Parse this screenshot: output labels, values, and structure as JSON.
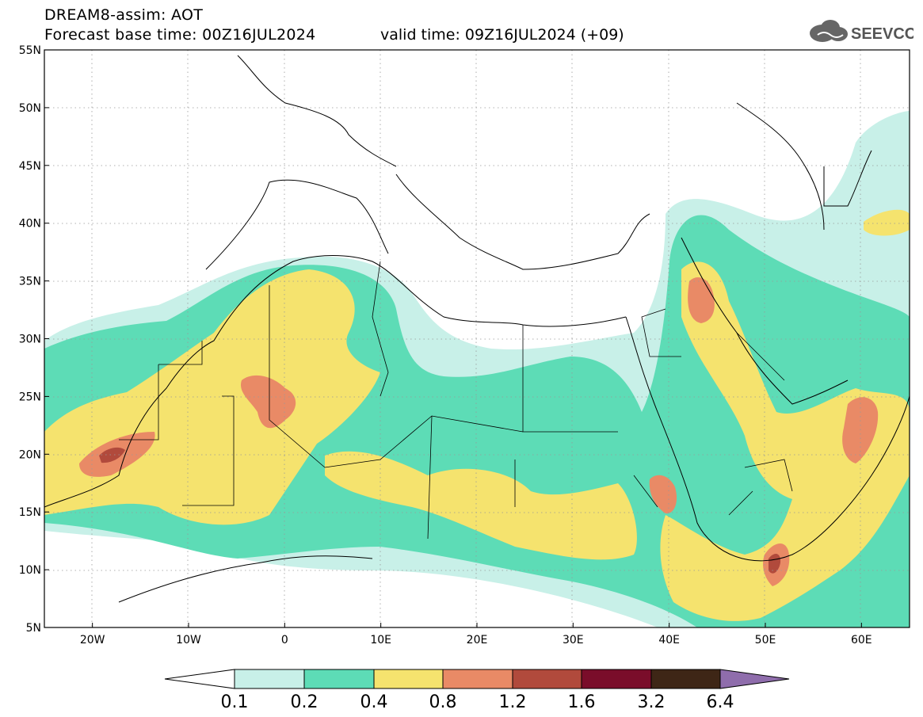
{
  "header": {
    "title": "DREAM8-assim: AOT",
    "base_time": "Forecast base time: 00Z16JUL2024",
    "valid_time": "valid time: 09Z16JUL2024 (+09)",
    "logo_text": "SEEVCCC",
    "logo_icon": "cloud-icon"
  },
  "map": {
    "lat_labels": [
      "55N",
      "50N",
      "45N",
      "40N",
      "35N",
      "30N",
      "25N",
      "20N",
      "15N",
      "10N",
      "5N"
    ],
    "lon_labels": [
      "20W",
      "10W",
      "0",
      "10E",
      "20E",
      "30E",
      "40E",
      "50E",
      "60E"
    ],
    "lat_range": [
      5,
      55
    ],
    "lon_range": [
      -25,
      65
    ],
    "grid": "dotted"
  },
  "colorbar": {
    "labels": [
      "0.1",
      "0.2",
      "0.4",
      "0.8",
      "1.2",
      "1.6",
      "3.2",
      "6.4"
    ],
    "colors": [
      "#ffffff",
      "#c8f0e8",
      "#5ddcb6",
      "#f5e36e",
      "#e98a66",
      "#b14a3c",
      "#7a0d2a",
      "#3e2616",
      "#8f6dac"
    ]
  }
}
